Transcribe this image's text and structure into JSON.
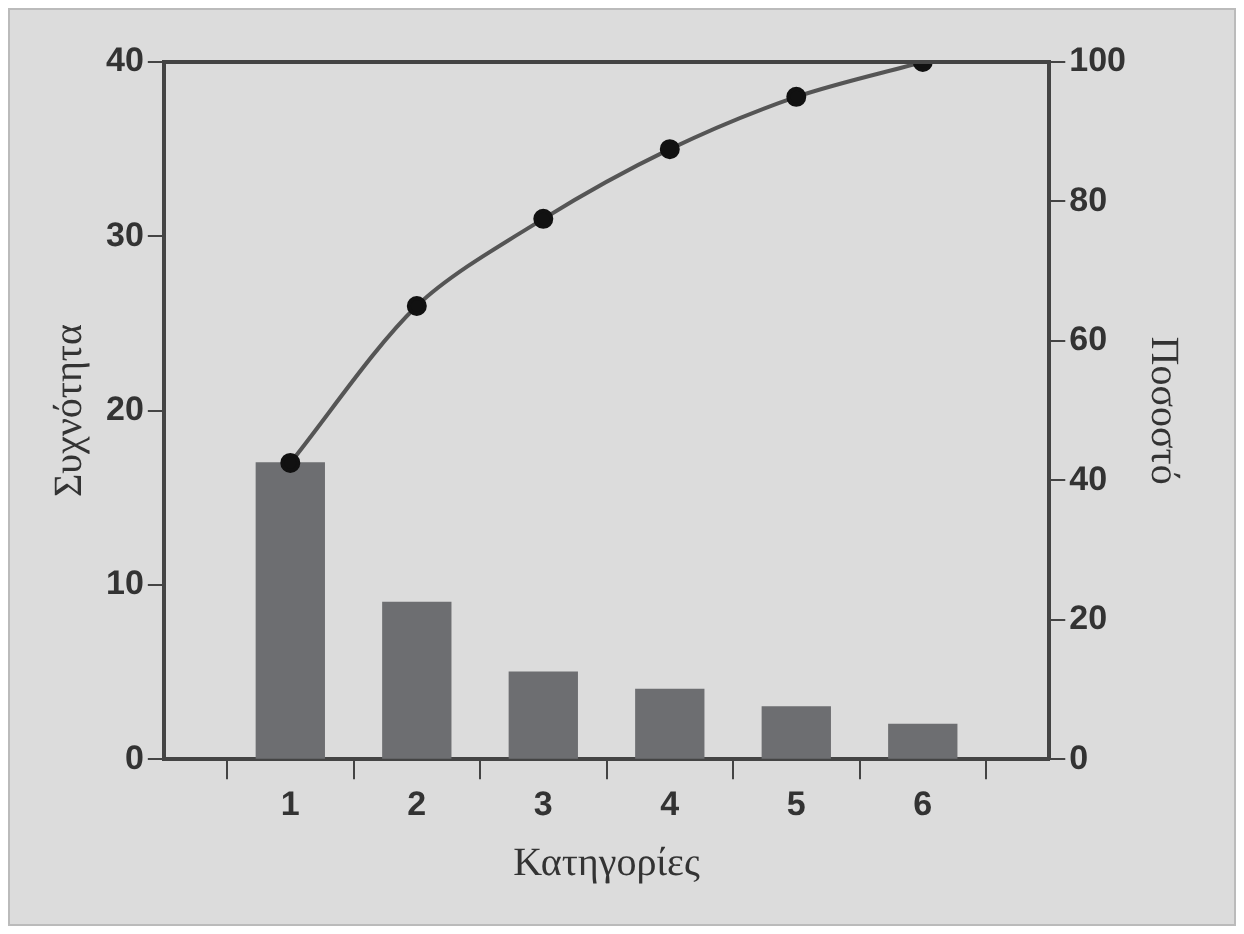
{
  "chart_data": {
    "type": "bar",
    "xlabel": "Κατηγορίες",
    "ylabel": "Συχνότητα",
    "y2label": "Ποσοστό",
    "categories": [
      "1",
      "2",
      "3",
      "4",
      "5",
      "6"
    ],
    "series": [
      {
        "color": "#6d6e71",
        "values": [
          17,
          9,
          5,
          4,
          3,
          2
        ]
      },
      {
        "type": "line",
        "axis": "y2",
        "color": "#555555",
        "marker": "circle",
        "values": [
          42.5,
          65,
          77.5,
          87.5,
          95,
          100
        ]
      }
    ],
    "ylim": [
      0,
      40
    ],
    "yticks": [
      0,
      10,
      20,
      30,
      40
    ],
    "y2lim": [
      0,
      100
    ],
    "y2ticks": [
      0,
      20,
      40,
      60,
      80,
      100
    ],
    "grid": false,
    "legend": false
  }
}
